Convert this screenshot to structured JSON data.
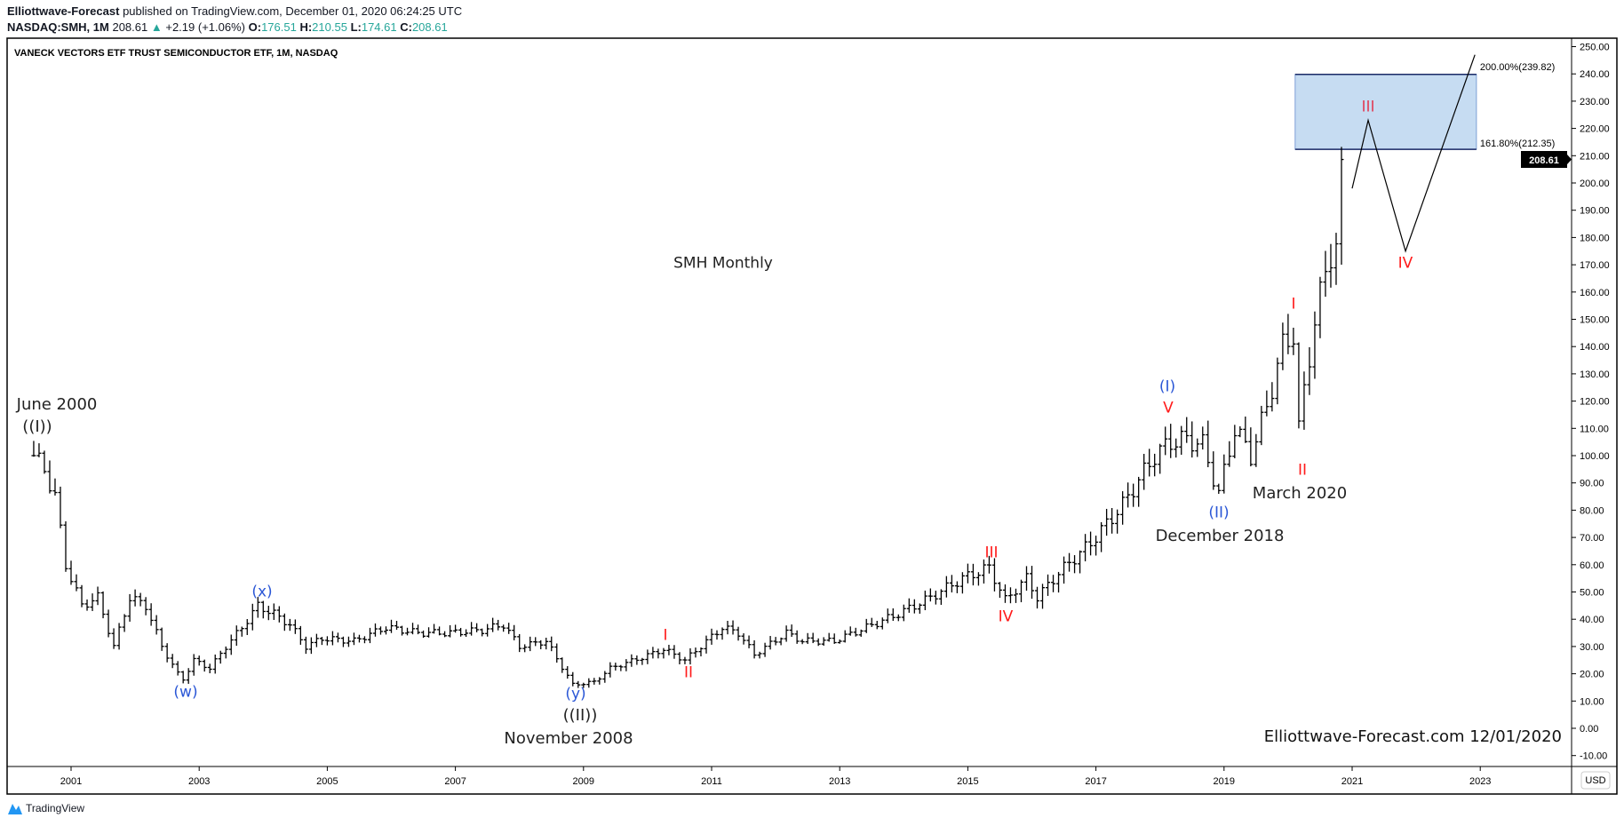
{
  "header": {
    "publisher": "Elliottwave-Forecast",
    "published_text": "published on TradingView.com, December 01, 2020 06:24:25 UTC",
    "symbol": "NASDAQ:SMH, 1M",
    "last": "208.61",
    "change": "+2.19 (+1.06%)",
    "o_label": "O:",
    "o": "176.51",
    "h_label": "H:",
    "h": "210.55",
    "l_label": "L:",
    "l": "174.61",
    "c_label": "C:",
    "c": "208.61",
    "up_color": "#26a69a"
  },
  "chart_title": "VANECK VECTORS ETF TRUST SEMICONDUCTOR ETF, 1M, NASDAQ",
  "currency_badge": "USD",
  "price_tag": "208.61",
  "footer_logo": "TradingView",
  "chart_data": {
    "type": "ohlc-bar",
    "title": "VANECK VECTORS ETF TRUST SEMICONDUCTOR ETF, 1M, NASDAQ",
    "x_ticks": [
      "2001",
      "2003",
      "2005",
      "2007",
      "2009",
      "2011",
      "2013",
      "2015",
      "2017",
      "2019",
      "2021",
      "2023"
    ],
    "y_ticks": [
      "-10.00",
      "0.00",
      "10.00",
      "20.00",
      "30.00",
      "40.00",
      "50.00",
      "60.00",
      "70.00",
      "80.00",
      "90.00",
      "100.00",
      "110.00",
      "120.00",
      "130.00",
      "140.00",
      "150.00",
      "160.00",
      "170.00",
      "180.00",
      "190.00",
      "200.00",
      "210.00",
      "220.00",
      "230.00",
      "240.00",
      "250.00"
    ],
    "ylim": [
      -15,
      255
    ],
    "xlim": [
      "2000-01",
      "2024-06"
    ],
    "grid": false,
    "monthly_close_anchors": [
      [
        "2000-06",
        100
      ],
      [
        "2000-08",
        95
      ],
      [
        "2000-10",
        85
      ],
      [
        "2000-12",
        60
      ],
      [
        "2001-03",
        45
      ],
      [
        "2001-06",
        48
      ],
      [
        "2001-09",
        30
      ],
      [
        "2001-12",
        48
      ],
      [
        "2002-03",
        45
      ],
      [
        "2002-06",
        30
      ],
      [
        "2002-09",
        20
      ],
      [
        "2002-10",
        18
      ],
      [
        "2002-12",
        25
      ],
      [
        "2003-03",
        22
      ],
      [
        "2003-06",
        30
      ],
      [
        "2003-09",
        37
      ],
      [
        "2003-12",
        45
      ],
      [
        "2004-03",
        42
      ],
      [
        "2004-06",
        38
      ],
      [
        "2004-09",
        30
      ],
      [
        "2004-12",
        33
      ],
      [
        "2005-06",
        32
      ],
      [
        "2005-12",
        37
      ],
      [
        "2006-06",
        35
      ],
      [
        "2006-12",
        35
      ],
      [
        "2007-06",
        36
      ],
      [
        "2007-10",
        38
      ],
      [
        "2008-01",
        30
      ],
      [
        "2008-06",
        32
      ],
      [
        "2008-11",
        16
      ],
      [
        "2009-03",
        17
      ],
      [
        "2009-06",
        22
      ],
      [
        "2009-12",
        26
      ],
      [
        "2010-04",
        29
      ],
      [
        "2010-08",
        25
      ],
      [
        "2011-03",
        37
      ],
      [
        "2011-06",
        35
      ],
      [
        "2011-09",
        27
      ],
      [
        "2012-03",
        35
      ],
      [
        "2012-06",
        32
      ],
      [
        "2012-12",
        32
      ],
      [
        "2013-06",
        37
      ],
      [
        "2013-12",
        42
      ],
      [
        "2014-06",
        48
      ],
      [
        "2014-12",
        55
      ],
      [
        "2015-05",
        59
      ],
      [
        "2015-08",
        47
      ],
      [
        "2015-12",
        55
      ],
      [
        "2016-02",
        48
      ],
      [
        "2016-06",
        57
      ],
      [
        "2016-12",
        68
      ],
      [
        "2017-06",
        82
      ],
      [
        "2017-12",
        100
      ],
      [
        "2018-03",
        105
      ],
      [
        "2018-06",
        106
      ],
      [
        "2018-09",
        104
      ],
      [
        "2018-12",
        86
      ],
      [
        "2019-03",
        110
      ],
      [
        "2019-06",
        100
      ],
      [
        "2019-09",
        118
      ],
      [
        "2019-12",
        140
      ],
      [
        "2020-02",
        145
      ],
      [
        "2020-03",
        110
      ],
      [
        "2020-06",
        150
      ],
      [
        "2020-09",
        175
      ],
      [
        "2020-10",
        177
      ],
      [
        "2020-11",
        208.61
      ]
    ],
    "target_zone": {
      "low": 212.35,
      "high": 239.82,
      "low_label": "161.80%(212.35)",
      "high_label": "200.00%(239.82)",
      "color": "#c6dcf2"
    },
    "projection_path": [
      [
        "2021-01",
        198
      ],
      [
        "2021-04",
        223
      ],
      [
        "2021-11",
        175
      ],
      [
        "2022-12",
        247
      ]
    ],
    "annotations": {
      "june_2000": "June 2000",
      "wave_1_cycle": "((I))",
      "wave_w": "(w)",
      "wave_x": "(x)",
      "wave_y": "(y)",
      "wave_2_cycle": "((II))",
      "nov_2008": "November 2008",
      "red_i_2010": "I",
      "red_ii_2010": "II",
      "red_iii_2015": "III",
      "red_iv_2015": "IV",
      "wave_1_primary": "(I)",
      "red_v_2018": "V",
      "wave_2_primary": "(II)",
      "dec_2018": "December 2018",
      "red_i_2020": "I",
      "red_ii_2020": "II",
      "mar_2020": "March 2020",
      "proj_iii": "III",
      "proj_iv": "IV",
      "chart_label": "SMH Monthly",
      "watermark": "Elliottwave-Forecast.com 12/01/2020"
    },
    "colors": {
      "bars": "#000000",
      "blue_wave": "#2b57d6",
      "red_wave": "#ff1a1a",
      "proj_iii": "#e0405a",
      "black_wave": "#222222"
    }
  }
}
